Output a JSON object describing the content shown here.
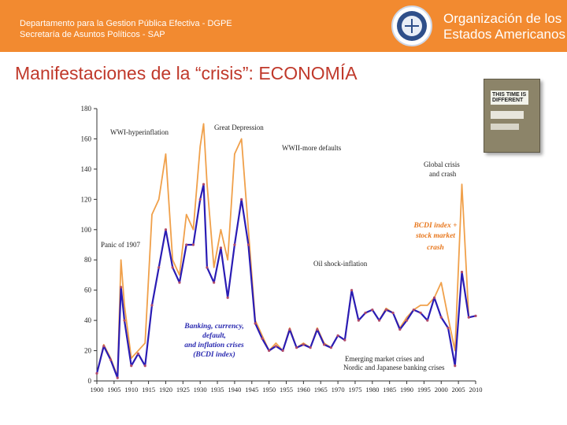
{
  "header": {
    "department_line1": "Departamento para la Gestion Pública Efectiva - DGPE",
    "department_line2": "Secretaría de Asuntos Políticos - SAP",
    "org_line1": "Organización de los",
    "org_line2": "Estados Americanos"
  },
  "slide": {
    "title": "Manifestaciones de la “crisis”: ECONOMÍA"
  },
  "book": {
    "cover_title": "THIS TIME IS DIFFERENT"
  },
  "colors": {
    "header_bg": "#f28a30",
    "title": "#c0392b",
    "line_bcdi": "#2a1cb4",
    "line_bcdi_stock": "#f0a04a",
    "annotation_orange": "#e8781e"
  },
  "chart_data": {
    "type": "line",
    "title": "",
    "xlabel": "",
    "ylabel": "",
    "xlim": [
      1900,
      2010
    ],
    "ylim": [
      0,
      180
    ],
    "x_ticks": [
      1900,
      1905,
      1910,
      1915,
      1920,
      1925,
      1930,
      1935,
      1940,
      1945,
      1950,
      1955,
      1960,
      1965,
      1970,
      1975,
      1980,
      1985,
      1990,
      1995,
      2000,
      2005,
      2010
    ],
    "y_ticks": [
      0,
      20,
      40,
      60,
      80,
      100,
      120,
      140,
      160,
      180
    ],
    "x": [
      1900,
      1902,
      1904,
      1906,
      1907,
      1908,
      1910,
      1912,
      1914,
      1916,
      1918,
      1920,
      1922,
      1924,
      1926,
      1928,
      1930,
      1931,
      1932,
      1934,
      1936,
      1938,
      1940,
      1942,
      1944,
      1946,
      1948,
      1950,
      1952,
      1954,
      1956,
      1958,
      1960,
      1962,
      1964,
      1966,
      1968,
      1970,
      1972,
      1974,
      1976,
      1978,
      1980,
      1982,
      1984,
      1986,
      1988,
      1990,
      1992,
      1994,
      1996,
      1998,
      2000,
      2002,
      2004,
      2006,
      2008,
      2010
    ],
    "series": [
      {
        "name": "BCDI index + stock market crash",
        "values": [
          5,
          24,
          15,
          3,
          80,
          50,
          15,
          20,
          25,
          110,
          120,
          150,
          80,
          70,
          110,
          100,
          155,
          170,
          130,
          75,
          100,
          80,
          150,
          160,
          100,
          40,
          30,
          20,
          25,
          20,
          35,
          22,
          25,
          22,
          35,
          25,
          22,
          30,
          27,
          60,
          40,
          45,
          47,
          40,
          48,
          45,
          35,
          42,
          47,
          50,
          50,
          55,
          65,
          42,
          20,
          130,
          42,
          43
        ],
        "color": "#f0a04a"
      },
      {
        "name": "Banking, currency, default, and inflation crises (BCDI index)",
        "values": [
          5,
          23,
          14,
          2,
          62,
          40,
          10,
          18,
          10,
          50,
          75,
          100,
          75,
          65,
          90,
          90,
          120,
          130,
          75,
          65,
          88,
          55,
          90,
          120,
          90,
          38,
          28,
          20,
          23,
          20,
          34,
          22,
          24,
          22,
          34,
          24,
          22,
          30,
          27,
          60,
          40,
          45,
          47,
          40,
          47,
          45,
          34,
          40,
          47,
          45,
          40,
          55,
          42,
          35,
          10,
          72,
          42,
          43
        ],
        "color": "#2a1cb4"
      }
    ],
    "annotations": [
      {
        "text": "WWI-hyperinflation"
      },
      {
        "text": "Great Depression"
      },
      {
        "text": "WWII-more defaults"
      },
      {
        "text": "Global crisis"
      },
      {
        "text": "and crash"
      },
      {
        "text": "Panic of 1907"
      },
      {
        "text": "Oil shock-inflation"
      },
      {
        "text": "Emerging market crises and"
      },
      {
        "text": "Nordic and Japanese banking crises"
      }
    ],
    "series_labels": {
      "bcdi_stock": [
        "BCDI index +",
        "stock market",
        "crash"
      ],
      "bcdi": [
        "Banking, currency,",
        "default,",
        "and inflation crises",
        "(BCDI index)"
      ]
    }
  }
}
